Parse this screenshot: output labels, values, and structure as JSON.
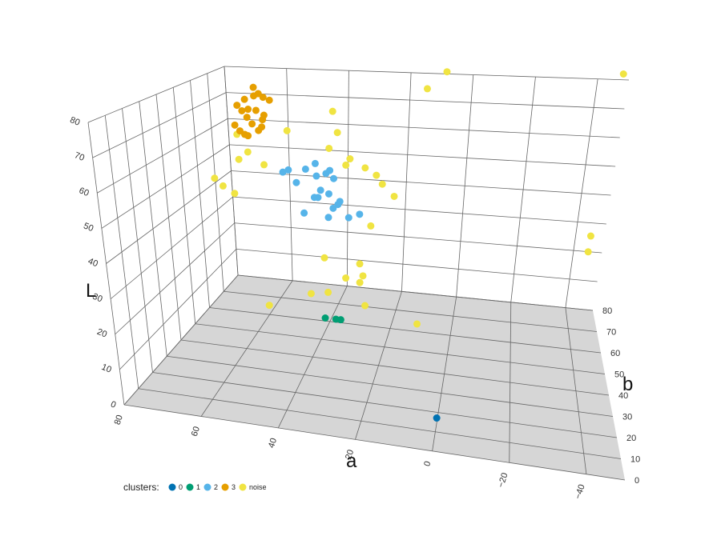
{
  "chart_data": {
    "type": "scatter",
    "projection": "3d",
    "axes": {
      "x": {
        "label": "a",
        "ticks": [
          "80",
          "60",
          "40",
          "20",
          "0",
          "−20",
          "−40"
        ]
      },
      "y": {
        "label": "b",
        "ticks": [
          "0",
          "10",
          "20",
          "30",
          "40",
          "50",
          "60",
          "70",
          "80"
        ]
      },
      "z": {
        "label": "L",
        "ticks": [
          "0",
          "10",
          "20",
          "30",
          "40",
          "50",
          "60",
          "70",
          "80"
        ]
      }
    },
    "legend": {
      "title": "clusters:",
      "placement": "bottom-left",
      "entries": [
        {
          "label": "0",
          "color": "#0072B2"
        },
        {
          "label": "1",
          "color": "#009E73"
        },
        {
          "label": "2",
          "color": "#56B4E9"
        },
        {
          "label": "3",
          "color": "#E69F00"
        },
        {
          "label": "noise",
          "color": "#F0E442"
        }
      ]
    },
    "series": [
      {
        "name": "0",
        "color": "#0072B2",
        "points": [
          [
            0,
            15,
            1
          ]
        ]
      },
      {
        "name": "1",
        "color": "#009E73",
        "points": [
          [
            40,
            55,
            4
          ],
          [
            35,
            55,
            4
          ],
          [
            38,
            60,
            1
          ]
        ]
      },
      {
        "name": "2",
        "color": "#56B4E9",
        "points": [
          [
            60,
            75,
            43
          ],
          [
            56,
            70,
            46
          ],
          [
            52,
            74,
            45
          ],
          [
            48,
            72,
            48
          ],
          [
            46,
            76,
            43
          ],
          [
            50,
            78,
            41
          ],
          [
            44,
            74,
            45
          ],
          [
            42,
            72,
            43
          ],
          [
            46,
            71,
            39
          ],
          [
            44,
            73,
            37
          ],
          [
            40,
            72,
            35
          ],
          [
            56,
            76,
            39
          ],
          [
            48,
            74,
            35
          ],
          [
            42,
            76,
            32
          ],
          [
            44,
            77,
            30
          ],
          [
            38,
            75,
            28
          ],
          [
            34,
            74,
            30
          ],
          [
            50,
            76,
            34
          ],
          [
            52,
            72,
            30
          ],
          [
            46,
            78,
            26
          ]
        ]
      },
      {
        "name": "3",
        "color": "#E69F00",
        "points": [
          [
            70,
            78,
            73
          ],
          [
            72,
            76,
            69
          ],
          [
            68,
            77,
            71
          ],
          [
            66,
            76,
            70
          ],
          [
            68,
            74,
            71
          ],
          [
            64,
            76,
            69
          ],
          [
            70,
            74,
            66
          ],
          [
            67,
            73,
            66
          ],
          [
            74,
            75,
            67
          ],
          [
            71,
            72,
            66
          ],
          [
            65,
            74,
            64
          ],
          [
            69,
            71,
            64
          ],
          [
            67,
            70,
            62
          ],
          [
            66,
            75,
            62
          ],
          [
            73,
            71,
            61
          ],
          [
            64,
            70,
            61
          ],
          [
            70,
            68,
            60
          ],
          [
            68,
            69,
            58
          ],
          [
            66,
            72,
            59
          ],
          [
            71,
            73,
            57
          ]
        ]
      },
      {
        "name": "noise",
        "color": "#F0E442",
        "points": [
          [
            68,
            62,
            52
          ],
          [
            66,
            64,
            54
          ],
          [
            62,
            66,
            49
          ],
          [
            72,
            70,
            58
          ],
          [
            70,
            62,
            40
          ],
          [
            74,
            63,
            42
          ],
          [
            76,
            62,
            45
          ],
          [
            56,
            70,
            60
          ],
          [
            42,
            68,
            55
          ],
          [
            40,
            70,
            60
          ],
          [
            38,
            72,
            48
          ],
          [
            36,
            70,
            51
          ],
          [
            32,
            73,
            47
          ],
          [
            28,
            72,
            45
          ],
          [
            26,
            72,
            42
          ],
          [
            22,
            72,
            38
          ],
          [
            28,
            66,
            30
          ],
          [
            30,
            60,
            20
          ],
          [
            34,
            58,
            16
          ],
          [
            38,
            52,
            14
          ],
          [
            28,
            52,
            18
          ],
          [
            26,
            50,
            12
          ],
          [
            10,
            52,
            7
          ],
          [
            44,
            54,
            12
          ],
          [
            42,
            62,
            20
          ],
          [
            56,
            50,
            9
          ],
          [
            46,
            82,
            64
          ],
          [
            8,
            78,
            81
          ],
          [
            12,
            70,
            76
          ],
          [
            -48,
            78,
            82
          ],
          [
            -44,
            70,
            30
          ],
          [
            -44,
            72,
            24
          ],
          [
            30,
            64,
            14
          ]
        ]
      }
    ]
  }
}
